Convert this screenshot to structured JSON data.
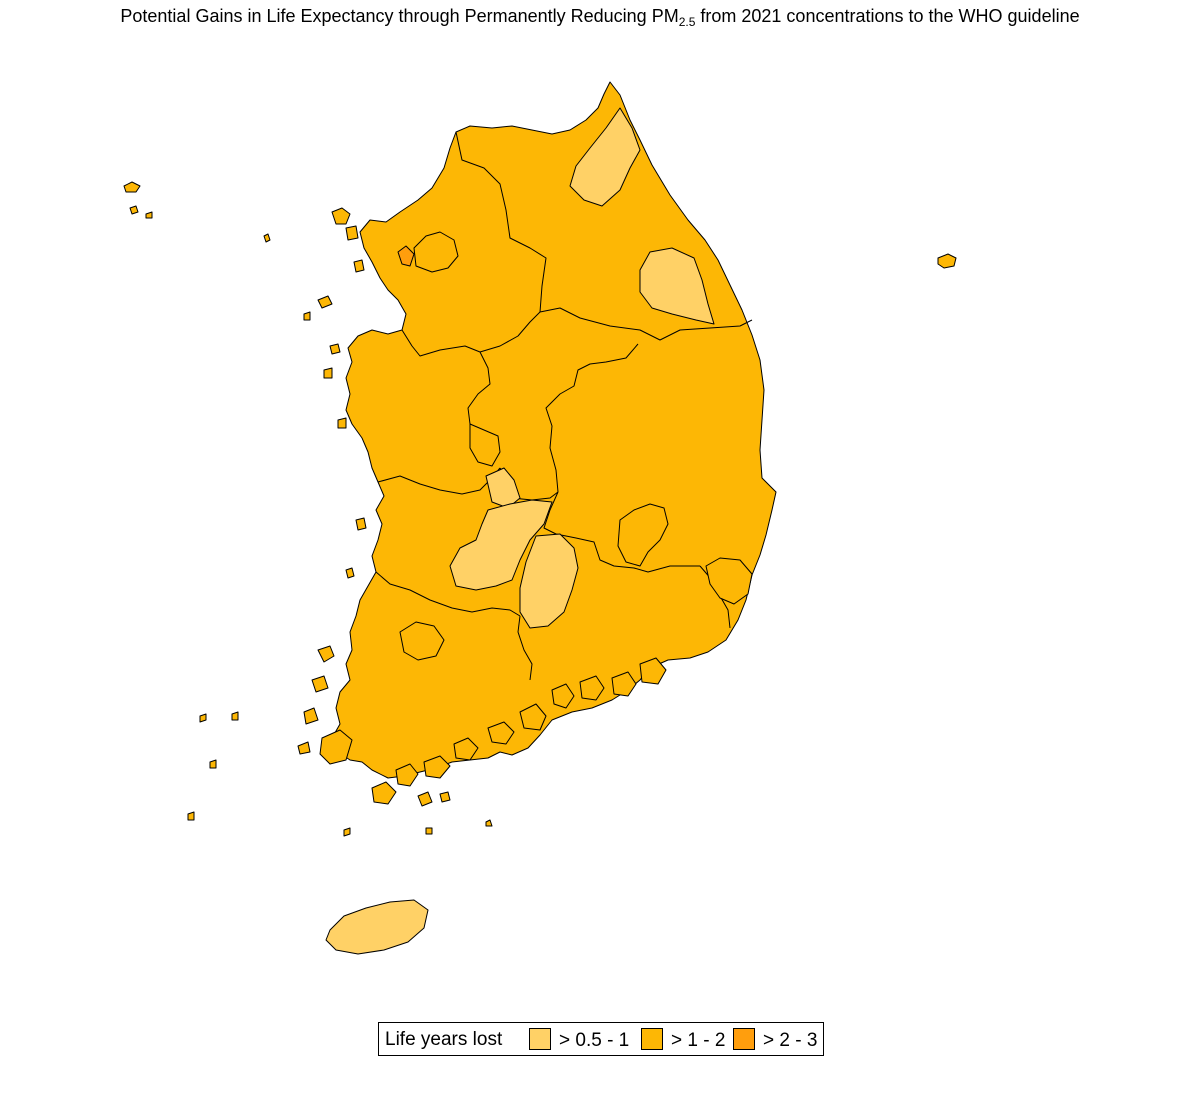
{
  "title": {
    "prefix": "Potential Gains in Life Expectancy through Permanently Reducing PM",
    "subscript": "2.5",
    "suffix": " from 2021 concentrations to the WHO guideline"
  },
  "legend": {
    "title": "Life years lost",
    "items": [
      {
        "label": "> 0.5 - 1",
        "color": "#FFD166"
      },
      {
        "label": "> 1 - 2",
        "color": "#FDB705"
      },
      {
        "label": "> 2 - 3",
        "color": "#FF9E0D"
      }
    ]
  },
  "colors": {
    "border": "#000000",
    "background": "#ffffff"
  }
}
